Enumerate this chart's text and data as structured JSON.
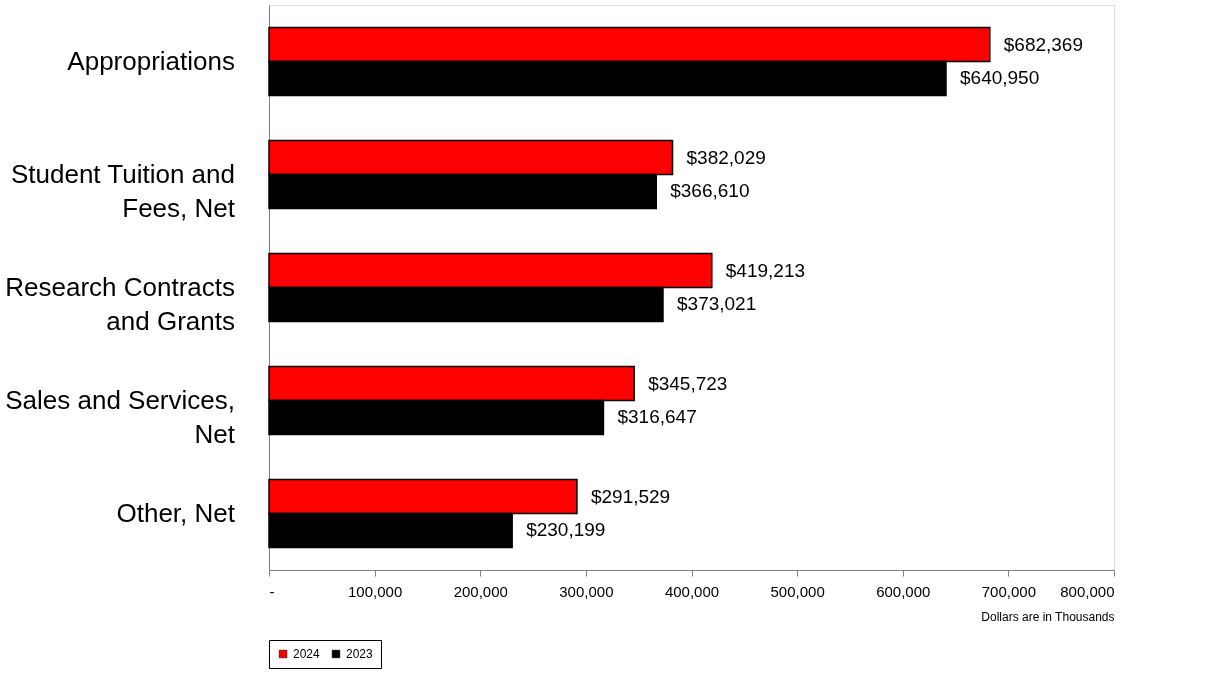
{
  "chart_data": {
    "type": "bar",
    "orientation": "horizontal",
    "xlabel": "Dollars are in Thousands",
    "categories": [
      "Appropriations",
      "Student Tuition and Fees, Net",
      "Research Contracts and Grants",
      "Sales and Services, Net",
      "Other, Net"
    ],
    "series": [
      {
        "name": "2024",
        "color": "#ff0000",
        "values": [
          682369,
          382029,
          419213,
          345723,
          291529
        ],
        "value_labels": [
          "$682,369",
          "$382,029",
          "$419,213",
          "$345,723",
          "$291,529"
        ]
      },
      {
        "name": "2023",
        "color": "#000000",
        "values": [
          640950,
          366610,
          373021,
          316647,
          230199
        ],
        "value_labels": [
          "$640,950",
          "$366,610",
          "$373,021",
          "$316,647",
          "$230,199"
        ]
      }
    ],
    "xlim": [
      0,
      800000
    ],
    "xticks": [
      {
        "value": 0,
        "label": "-"
      },
      {
        "value": 100000,
        "label": "100,000"
      },
      {
        "value": 200000,
        "label": "200,000"
      },
      {
        "value": 300000,
        "label": "300,000"
      },
      {
        "value": 400000,
        "label": "400,000"
      },
      {
        "value": 500000,
        "label": "500,000"
      },
      {
        "value": 600000,
        "label": "600,000"
      },
      {
        "value": 700000,
        "label": "700,000"
      },
      {
        "value": 800000,
        "label": "800,000"
      }
    ],
    "grid": false,
    "legend": "bottom"
  }
}
